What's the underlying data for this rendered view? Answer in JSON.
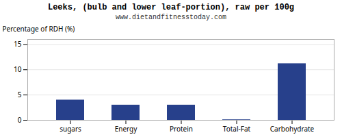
{
  "chart_data": {
    "type": "bar",
    "title": "Leeks, (bulb and lower leaf-portion), raw per 100g",
    "subtitle": "www.dietandfitnesstoday.com",
    "categories": [
      "sugars",
      "Energy",
      "Protein",
      "Total-Fat",
      "Carbohydrate"
    ],
    "values": [
      4.0,
      3.0,
      3.0,
      0.1,
      11.2
    ],
    "color": "#27408B",
    "ylabel": "Percentage of RDH (%)",
    "ylim": [
      0,
      16
    ],
    "yticks": [
      0,
      5,
      10,
      15
    ],
    "grid": true
  }
}
